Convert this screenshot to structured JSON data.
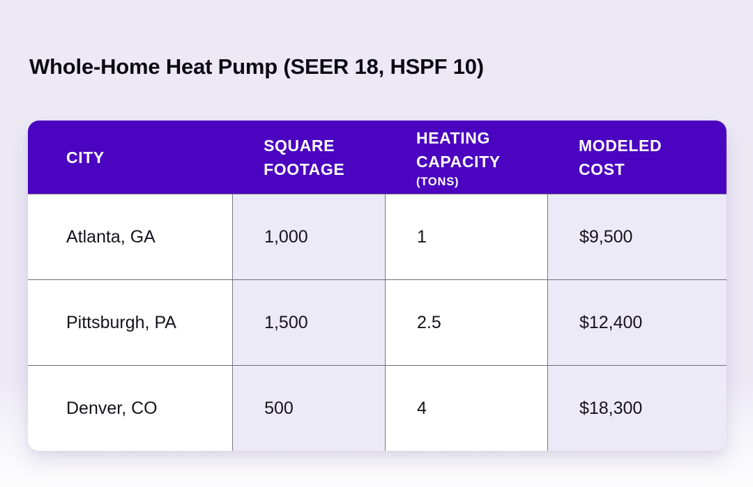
{
  "page": {
    "title": "Whole-Home Heat Pump (SEER 18, HSPF 10)"
  },
  "colors": {
    "header_bg": "#4B05C0",
    "page_bg_top": "#ECE9F5",
    "page_bg_bottom": "#FDFDFE",
    "lavender_cell_bg": "#EDEAF7",
    "white_cell_bg": "#FFFFFF",
    "grid_line": "#6F6879",
    "header_text": "#FFFFFF",
    "body_text": "#16121C"
  },
  "table": {
    "header": {
      "city": "CITY",
      "sqft": "SQUARE\nFOOTAGE",
      "capacity": "HEATING\nCAPACITY",
      "capacity_sub": "(TONS)",
      "cost": "MODELED\nCOST"
    },
    "rows": [
      {
        "city": "Atlanta, GA",
        "sqft": "1,000",
        "capacity": "1",
        "cost": "$9,500"
      },
      {
        "city": "Pittsburgh, PA",
        "sqft": "1,500",
        "capacity": "2.5",
        "cost": "$12,400"
      },
      {
        "city": "Denver, CO",
        "sqft": "500",
        "capacity": "4",
        "cost": "$18,300"
      }
    ]
  },
  "chart_data": {
    "type": "table",
    "title": "Whole-Home Heat Pump (SEER 18, HSPF 10)",
    "columns": [
      "City",
      "Square Footage",
      "Heating Capacity (Tons)",
      "Modeled Cost"
    ],
    "rows": [
      [
        "Atlanta, GA",
        "1,000",
        "1",
        "$9,500"
      ],
      [
        "Pittsburgh, PA",
        "1,500",
        "2.5",
        "$12,400"
      ],
      [
        "Denver, CO",
        "500",
        "4",
        "$18,300"
      ]
    ]
  }
}
